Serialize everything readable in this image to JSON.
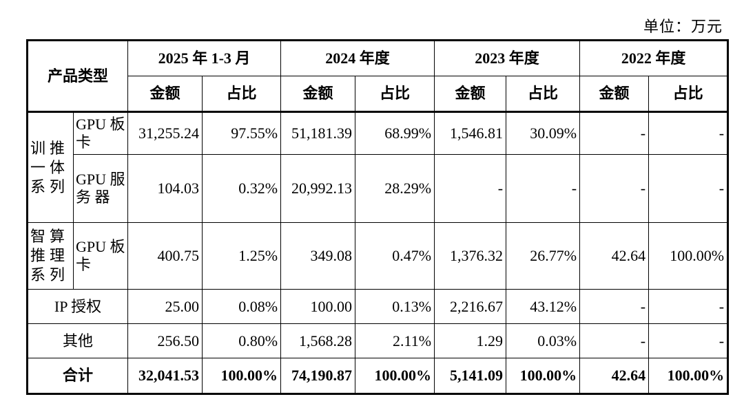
{
  "unit_label": "单位：万元",
  "header": {
    "product_type": "产品类型",
    "periods": [
      "2025 年 1-3 月",
      "2024 年度",
      "2023 年度",
      "2022 年度"
    ],
    "amount": "金额",
    "ratio": "占比"
  },
  "groups": {
    "train_infer": "训推一体系列",
    "smart_compute": "智算推理系列"
  },
  "rows": [
    {
      "sub": "GPU 板卡",
      "values": [
        "31,255.24",
        "97.55%",
        "51,181.39",
        "68.99%",
        "1,546.81",
        "30.09%",
        "-",
        "-"
      ]
    },
    {
      "sub": "GPU 服 务 器",
      "values": [
        "104.03",
        "0.32%",
        "20,992.13",
        "28.29%",
        "-",
        "-",
        "-",
        "-"
      ]
    },
    {
      "sub": "GPU 板卡",
      "values": [
        "400.75",
        "1.25%",
        "349.08",
        "0.47%",
        "1,376.32",
        "26.77%",
        "42.64",
        "100.00%"
      ]
    },
    {
      "label": "IP 授权",
      "values": [
        "25.00",
        "0.08%",
        "100.00",
        "0.13%",
        "2,216.67",
        "43.12%",
        "-",
        "-"
      ]
    },
    {
      "label": "其他",
      "values": [
        "256.50",
        "0.80%",
        "1,568.28",
        "2.11%",
        "1.29",
        "0.03%",
        "-",
        "-"
      ]
    },
    {
      "label": "合计",
      "values": [
        "32,041.53",
        "100.00%",
        "74,190.87",
        "100.00%",
        "5,141.09",
        "100.00%",
        "42.64",
        "100.00%"
      ]
    }
  ]
}
